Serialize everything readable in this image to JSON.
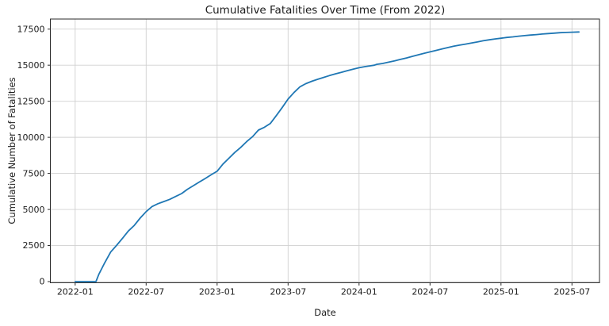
{
  "colors": {
    "background": "#ffffff",
    "line": "#1f77b4",
    "grid": "#d0d0d0",
    "spine": "#2a2a2a",
    "text": "#1c1c1c"
  },
  "chart_data": {
    "type": "line",
    "title": "Cumulative Fatalities Over Time (From 2022)",
    "xlabel": "Date",
    "ylabel": "Cumulative Number of Fatalities",
    "grid": true,
    "legend": false,
    "x_tick_labels": [
      "2022-01",
      "2022-07",
      "2023-01",
      "2023-07",
      "2024-01",
      "2024-07",
      "2025-01",
      "2025-07"
    ],
    "y_ticks": [
      0,
      2500,
      5000,
      7500,
      10000,
      12500,
      15000,
      17500
    ],
    "ylim": [
      0,
      18200
    ],
    "x_range": [
      "2021-11",
      "2025-09"
    ],
    "series": [
      {
        "name": "cumulative_fatalities",
        "color": "#1f77b4",
        "points": [
          [
            "2022-01-01",
            0
          ],
          [
            "2022-02-01",
            0
          ],
          [
            "2022-02-24",
            0
          ],
          [
            "2022-03-01",
            500
          ],
          [
            "2022-03-16",
            1300
          ],
          [
            "2022-04-01",
            2050
          ],
          [
            "2022-04-16",
            2500
          ],
          [
            "2022-05-01",
            3000
          ],
          [
            "2022-05-16",
            3500
          ],
          [
            "2022-06-01",
            3900
          ],
          [
            "2022-06-16",
            4400
          ],
          [
            "2022-07-01",
            4850
          ],
          [
            "2022-07-16",
            5200
          ],
          [
            "2022-08-01",
            5400
          ],
          [
            "2022-08-16",
            5550
          ],
          [
            "2022-09-01",
            5700
          ],
          [
            "2022-09-16",
            5900
          ],
          [
            "2022-10-01",
            6100
          ],
          [
            "2022-10-16",
            6400
          ],
          [
            "2022-11-01",
            6650
          ],
          [
            "2022-11-16",
            6900
          ],
          [
            "2022-12-01",
            7150
          ],
          [
            "2022-12-16",
            7400
          ],
          [
            "2023-01-01",
            7650
          ],
          [
            "2023-01-16",
            8150
          ],
          [
            "2023-02-01",
            8550
          ],
          [
            "2023-02-16",
            8950
          ],
          [
            "2023-03-01",
            9300
          ],
          [
            "2023-03-16",
            9700
          ],
          [
            "2023-04-01",
            10050
          ],
          [
            "2023-04-16",
            10500
          ],
          [
            "2023-05-01",
            10700
          ],
          [
            "2023-05-16",
            10950
          ],
          [
            "2023-06-01",
            11500
          ],
          [
            "2023-06-16",
            12050
          ],
          [
            "2023-07-01",
            12650
          ],
          [
            "2023-07-16",
            13100
          ],
          [
            "2023-08-01",
            13500
          ],
          [
            "2023-08-16",
            13720
          ],
          [
            "2023-09-01",
            13880
          ],
          [
            "2023-09-16",
            14020
          ],
          [
            "2023-10-01",
            14150
          ],
          [
            "2023-10-16",
            14280
          ],
          [
            "2023-11-01",
            14400
          ],
          [
            "2023-11-16",
            14500
          ],
          [
            "2023-12-01",
            14620
          ],
          [
            "2023-12-16",
            14720
          ],
          [
            "2024-01-01",
            14820
          ],
          [
            "2024-01-16",
            14900
          ],
          [
            "2024-02-01",
            14960
          ],
          [
            "2024-02-10",
            15000
          ],
          [
            "2024-02-16",
            15060
          ],
          [
            "2024-03-01",
            15120
          ],
          [
            "2024-03-16",
            15210
          ],
          [
            "2024-04-01",
            15300
          ],
          [
            "2024-04-16",
            15400
          ],
          [
            "2024-05-01",
            15500
          ],
          [
            "2024-05-16",
            15610
          ],
          [
            "2024-06-01",
            15720
          ],
          [
            "2024-06-16",
            15820
          ],
          [
            "2024-07-01",
            15920
          ],
          [
            "2024-07-16",
            16020
          ],
          [
            "2024-08-01",
            16120
          ],
          [
            "2024-08-16",
            16220
          ],
          [
            "2024-09-01",
            16310
          ],
          [
            "2024-09-16",
            16390
          ],
          [
            "2024-10-01",
            16460
          ],
          [
            "2024-10-16",
            16540
          ],
          [
            "2024-11-01",
            16610
          ],
          [
            "2024-11-16",
            16690
          ],
          [
            "2024-12-01",
            16760
          ],
          [
            "2024-12-16",
            16820
          ],
          [
            "2025-01-01",
            16870
          ],
          [
            "2025-01-16",
            16920
          ],
          [
            "2025-02-01",
            16960
          ],
          [
            "2025-02-16",
            17010
          ],
          [
            "2025-03-01",
            17050
          ],
          [
            "2025-03-16",
            17090
          ],
          [
            "2025-04-01",
            17120
          ],
          [
            "2025-04-16",
            17160
          ],
          [
            "2025-05-01",
            17190
          ],
          [
            "2025-05-16",
            17220
          ],
          [
            "2025-06-01",
            17250
          ],
          [
            "2025-06-16",
            17270
          ],
          [
            "2025-07-01",
            17285
          ],
          [
            "2025-07-19",
            17300
          ]
        ]
      }
    ]
  }
}
